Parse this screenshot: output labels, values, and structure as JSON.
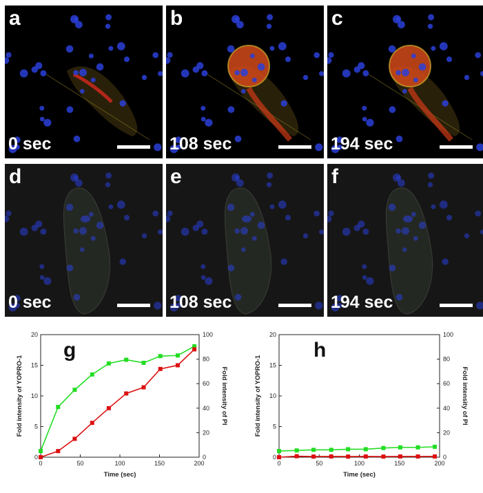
{
  "panels": [
    {
      "letter": "a",
      "time": "0 sec"
    },
    {
      "letter": "b",
      "time": "108 sec"
    },
    {
      "letter": "c",
      "time": "194 sec"
    },
    {
      "letter": "d",
      "time": "0 sec"
    },
    {
      "letter": "e",
      "time": "108 sec"
    },
    {
      "letter": "f",
      "time": "194 sec"
    }
  ],
  "colors": {
    "yopro": "#22dd22",
    "pi": "#dd1111",
    "nuclei": "#2a3fd8"
  },
  "chart_data": [
    {
      "type": "line",
      "letter": "g",
      "xlabel": "Time (sec)",
      "ylabel": "Fold intensity of YOPRO-1",
      "y2label": "Fold intensity of PI",
      "xlim": [
        0,
        200
      ],
      "ylim": [
        0,
        20
      ],
      "y2lim": [
        0,
        100
      ],
      "xticks": [
        0,
        50,
        100,
        150,
        200
      ],
      "yticks": [
        0,
        5,
        10,
        15,
        20
      ],
      "y2ticks": [
        0,
        20,
        40,
        60,
        80,
        100
      ],
      "x": [
        0,
        22,
        43,
        65,
        86,
        108,
        130,
        151,
        173,
        194
      ],
      "series": [
        {
          "axis": "left",
          "color": "#22dd22",
          "values": [
            1.0,
            8.2,
            11.0,
            13.5,
            15.3,
            15.9,
            15.4,
            16.5,
            16.6,
            18.1
          ]
        },
        {
          "axis": "right",
          "color": "#dd1111",
          "values": [
            0,
            5,
            15,
            28,
            40,
            52,
            57,
            72,
            75,
            88
          ]
        }
      ],
      "grid": false
    },
    {
      "type": "line",
      "letter": "h",
      "xlabel": "Time (sec)",
      "ylabel": "Fold intensity of YOPRO-1",
      "y2label": "Fold intensity of PI",
      "xlim": [
        0,
        200
      ],
      "ylim": [
        0,
        20
      ],
      "y2lim": [
        0,
        100
      ],
      "xticks": [
        0,
        50,
        100,
        150,
        200
      ],
      "yticks": [
        0,
        5,
        10,
        15,
        20
      ],
      "y2ticks": [
        0,
        20,
        40,
        60,
        80,
        100
      ],
      "x": [
        0,
        22,
        43,
        65,
        86,
        108,
        130,
        151,
        173,
        194
      ],
      "series": [
        {
          "axis": "left",
          "color": "#22dd22",
          "values": [
            1.0,
            1.1,
            1.2,
            1.2,
            1.3,
            1.3,
            1.5,
            1.6,
            1.6,
            1.7
          ]
        },
        {
          "axis": "right",
          "color": "#dd1111",
          "values": [
            0,
            0.8,
            0.5,
            0.6,
            0.5,
            0.6,
            0.5,
            0.6,
            0.6,
            0.6
          ]
        }
      ],
      "grid": false
    }
  ]
}
